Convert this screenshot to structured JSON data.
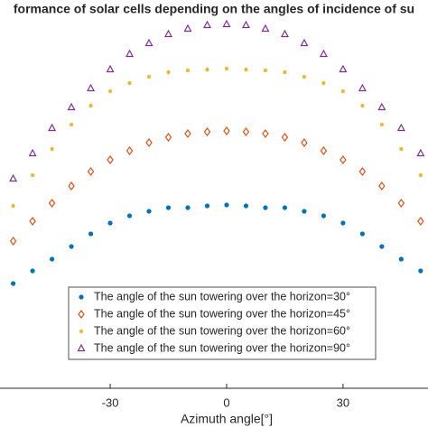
{
  "chart_data": {
    "type": "scatter",
    "title": "formance of solar cells depending on the angles of incidence of su",
    "xlabel": "Azimuth angle[°]",
    "x": [
      -55,
      -50,
      -45,
      -40,
      -35,
      -30,
      -25,
      -20,
      -15,
      -10,
      -5,
      0,
      5,
      10,
      15,
      20,
      25,
      30,
      35,
      40,
      45,
      50
    ],
    "xlim": [
      -58.4,
      51.9
    ],
    "xticks": [
      -30,
      0,
      30
    ],
    "ylim": [
      0,
      430
    ],
    "legend": "bottom",
    "series": [
      {
        "name": "The angle of the sun towering over the horizon=30°",
        "color": "#0072bd",
        "marker": "dot",
        "values": [
          116,
          130,
          143,
          157,
          171,
          183,
          191,
          196,
          200,
          200,
          202,
          203,
          202,
          200,
          200,
          196,
          191,
          183,
          171,
          157,
          143,
          130
        ]
      },
      {
        "name": "The angle of the sun towering over the horizon=45°",
        "color": "#d95319",
        "marker": "diamond",
        "values": [
          163,
          185,
          205,
          224,
          240,
          253,
          263,
          272,
          278,
          282,
          284,
          285,
          284,
          282,
          278,
          272,
          263,
          253,
          240,
          224,
          205,
          185
        ]
      },
      {
        "name": "The angle of the sun towering over the horizon=60°",
        "color": "#edb120",
        "marker": "star",
        "values": [
          202,
          236,
          265,
          292,
          313,
          329,
          338,
          345,
          350,
          352,
          353,
          354,
          353,
          352,
          350,
          345,
          338,
          329,
          313,
          292,
          265,
          236
        ]
      },
      {
        "name": "The angle of the sun towering over the horizon=90°",
        "color": "#7e2f8e",
        "marker": "triangle",
        "values": [
          232,
          260,
          288,
          311,
          332,
          353,
          370,
          382,
          392,
          398,
          402,
          403,
          402,
          398,
          392,
          382,
          370,
          353,
          332,
          311,
          288,
          260
        ]
      }
    ]
  }
}
